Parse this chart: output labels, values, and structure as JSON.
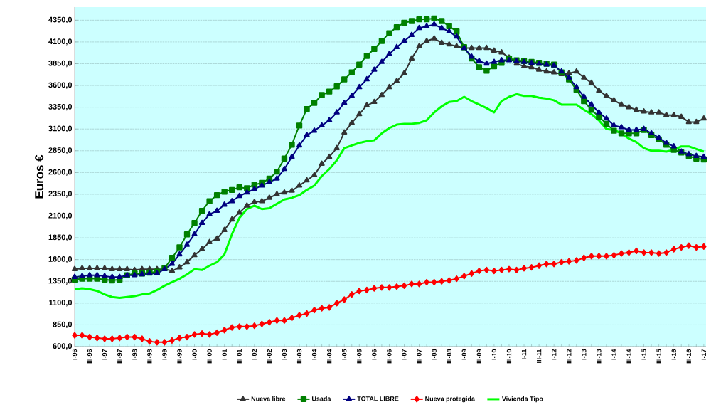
{
  "chart_data": {
    "type": "line",
    "ylabel": "Euros €",
    "categories": [
      "I-96",
      null,
      "III-96",
      null,
      "I-97",
      null,
      "III-97",
      null,
      "I-98",
      null,
      "III-98",
      null,
      "I-99",
      null,
      "III-99",
      null,
      "I-00",
      null,
      "III-00",
      null,
      "I-01",
      null,
      "III-01",
      null,
      "I-02",
      null,
      "III-02",
      null,
      "I-03",
      null,
      "III-03",
      null,
      "I-04",
      null,
      "III-04",
      null,
      "I-05",
      null,
      "III-05",
      null,
      "I-06",
      null,
      "III-06",
      null,
      "I-07",
      null,
      "III-07",
      null,
      "I-08",
      null,
      "III-08",
      null,
      "I-09",
      null,
      "III-09",
      null,
      "I-10",
      null,
      "III-10",
      null,
      "I-11",
      null,
      "III-11",
      null,
      "I-12",
      null,
      "III-12",
      null,
      "I-13",
      null,
      "III-13",
      null,
      "I-14",
      null,
      "III-14",
      null,
      "I-15",
      null,
      "III-15",
      null,
      "I-16",
      null,
      "III-16",
      null,
      "I-17"
    ],
    "series": [
      {
        "name": "Nueva libre",
        "color": "#333333",
        "marker": "triangle",
        "values": [
          1490,
          1500,
          1500,
          1500,
          1500,
          1490,
          1490,
          1490,
          1480,
          1490,
          1490,
          1490,
          1490,
          1470,
          1510,
          1570,
          1650,
          1720,
          1800,
          1840,
          1940,
          2060,
          2140,
          2220,
          2260,
          2270,
          2310,
          2350,
          2370,
          2390,
          2450,
          2510,
          2570,
          2700,
          2780,
          2880,
          3060,
          3170,
          3270,
          3370,
          3410,
          3490,
          3580,
          3650,
          3740,
          3910,
          4050,
          4110,
          4140,
          4090,
          4070,
          4050,
          4030,
          4030,
          4030,
          4030,
          4000,
          3980,
          3920,
          3850,
          3820,
          3810,
          3780,
          3760,
          3750,
          3730,
          3740,
          3760,
          3690,
          3630,
          3540,
          3480,
          3430,
          3380,
          3350,
          3320,
          3300,
          3290,
          3290,
          3260,
          3260,
          3240,
          3180,
          3180,
          3220
        ]
      },
      {
        "name": "Usada",
        "color": "#008000",
        "marker": "square",
        "values": [
          1370,
          1380,
          1380,
          1380,
          1370,
          1360,
          1370,
          1420,
          1440,
          1440,
          1450,
          1460,
          1500,
          1620,
          1740,
          1890,
          2020,
          2160,
          2270,
          2340,
          2380,
          2400,
          2430,
          2420,
          2460,
          2480,
          2530,
          2610,
          2760,
          2920,
          3140,
          3330,
          3400,
          3490,
          3530,
          3590,
          3670,
          3750,
          3840,
          3940,
          4020,
          4110,
          4200,
          4270,
          4320,
          4340,
          4360,
          4360,
          4370,
          4340,
          4280,
          4220,
          4040,
          3910,
          3810,
          3770,
          3820,
          3860,
          3910,
          3890,
          3880,
          3870,
          3860,
          3850,
          3840,
          3750,
          3670,
          3550,
          3420,
          3320,
          3240,
          3160,
          3080,
          3050,
          3050,
          3050,
          3090,
          3030,
          2980,
          2920,
          2860,
          2830,
          2790,
          2760,
          2750
        ]
      },
      {
        "name": "TOTAL LIBRE",
        "color": "#000080",
        "marker": "triangle",
        "values": [
          1400,
          1410,
          1420,
          1420,
          1410,
          1400,
          1400,
          1420,
          1420,
          1430,
          1440,
          1440,
          1490,
          1550,
          1660,
          1770,
          1890,
          2020,
          2120,
          2160,
          2230,
          2270,
          2330,
          2370,
          2410,
          2450,
          2490,
          2530,
          2640,
          2780,
          2910,
          3030,
          3080,
          3140,
          3200,
          3290,
          3400,
          3480,
          3580,
          3670,
          3780,
          3870,
          3960,
          4040,
          4110,
          4180,
          4260,
          4280,
          4300,
          4260,
          4220,
          4160,
          4030,
          3930,
          3880,
          3850,
          3870,
          3890,
          3890,
          3880,
          3870,
          3860,
          3850,
          3840,
          3830,
          3760,
          3690,
          3580,
          3470,
          3380,
          3290,
          3220,
          3140,
          3120,
          3090,
          3090,
          3100,
          3050,
          3000,
          2940,
          2900,
          2840,
          2810,
          2790,
          2780
        ]
      },
      {
        "name": "Nueva protegida",
        "color": "#ff0000",
        "marker": "diamond",
        "values": [
          730,
          730,
          710,
          700,
          690,
          690,
          700,
          710,
          710,
          690,
          660,
          650,
          650,
          670,
          700,
          710,
          740,
          750,
          740,
          760,
          790,
          820,
          830,
          830,
          840,
          860,
          880,
          900,
          900,
          930,
          960,
          980,
          1020,
          1040,
          1050,
          1100,
          1140,
          1200,
          1240,
          1250,
          1270,
          1280,
          1280,
          1290,
          1300,
          1320,
          1320,
          1340,
          1340,
          1350,
          1360,
          1380,
          1410,
          1440,
          1470,
          1480,
          1470,
          1480,
          1490,
          1480,
          1500,
          1510,
          1530,
          1550,
          1550,
          1570,
          1580,
          1590,
          1620,
          1640,
          1640,
          1640,
          1650,
          1670,
          1680,
          1700,
          1680,
          1680,
          1670,
          1680,
          1720,
          1740,
          1760,
          1740,
          1750
        ]
      },
      {
        "name": "Vivienda Tipo",
        "color": "#00ff00",
        "marker": "none",
        "values": [
          1260,
          1270,
          1260,
          1240,
          1200,
          1170,
          1160,
          1170,
          1180,
          1200,
          1210,
          1250,
          1300,
          1340,
          1380,
          1430,
          1490,
          1480,
          1530,
          1570,
          1660,
          1890,
          2080,
          2180,
          2220,
          2180,
          2190,
          2240,
          2290,
          2310,
          2340,
          2400,
          2450,
          2560,
          2640,
          2740,
          2880,
          2910,
          2940,
          2960,
          2970,
          3050,
          3110,
          3150,
          3160,
          3160,
          3170,
          3200,
          3290,
          3360,
          3410,
          3420,
          3470,
          3420,
          3380,
          3340,
          3290,
          3420,
          3470,
          3500,
          3480,
          3480,
          3460,
          3450,
          3430,
          3380,
          3380,
          3380,
          3320,
          3270,
          3200,
          3100,
          3090,
          3050,
          2990,
          2950,
          2880,
          2850,
          2850,
          2840,
          2860,
          2900,
          2900,
          2870,
          2840
        ]
      }
    ],
    "ylim": [
      600,
      4500
    ],
    "yticks": [
      {
        "value": 600,
        "label": "600,0"
      },
      {
        "value": 850,
        "label": "850,0"
      },
      {
        "value": 1100,
        "label": "1100,0"
      },
      {
        "value": 1350,
        "label": "1350,0"
      },
      {
        "value": 1600,
        "label": "1600,0"
      },
      {
        "value": 1850,
        "label": "1850,0"
      },
      {
        "value": 2100,
        "label": "2100,0"
      },
      {
        "value": 2350,
        "label": "2350,0"
      },
      {
        "value": 2600,
        "label": "2600,0"
      },
      {
        "value": 2850,
        "label": "2850,0"
      },
      {
        "value": 3100,
        "label": "3100,0"
      },
      {
        "value": 3350,
        "label": "3350,0"
      },
      {
        "value": 3600,
        "label": "3600,0"
      },
      {
        "value": 3850,
        "label": "3850,0"
      },
      {
        "value": 4100,
        "label": "4100,0"
      },
      {
        "value": 4350,
        "label": "4350,0"
      }
    ],
    "grid": "y",
    "legend": "bottom",
    "line_style": "solid"
  }
}
